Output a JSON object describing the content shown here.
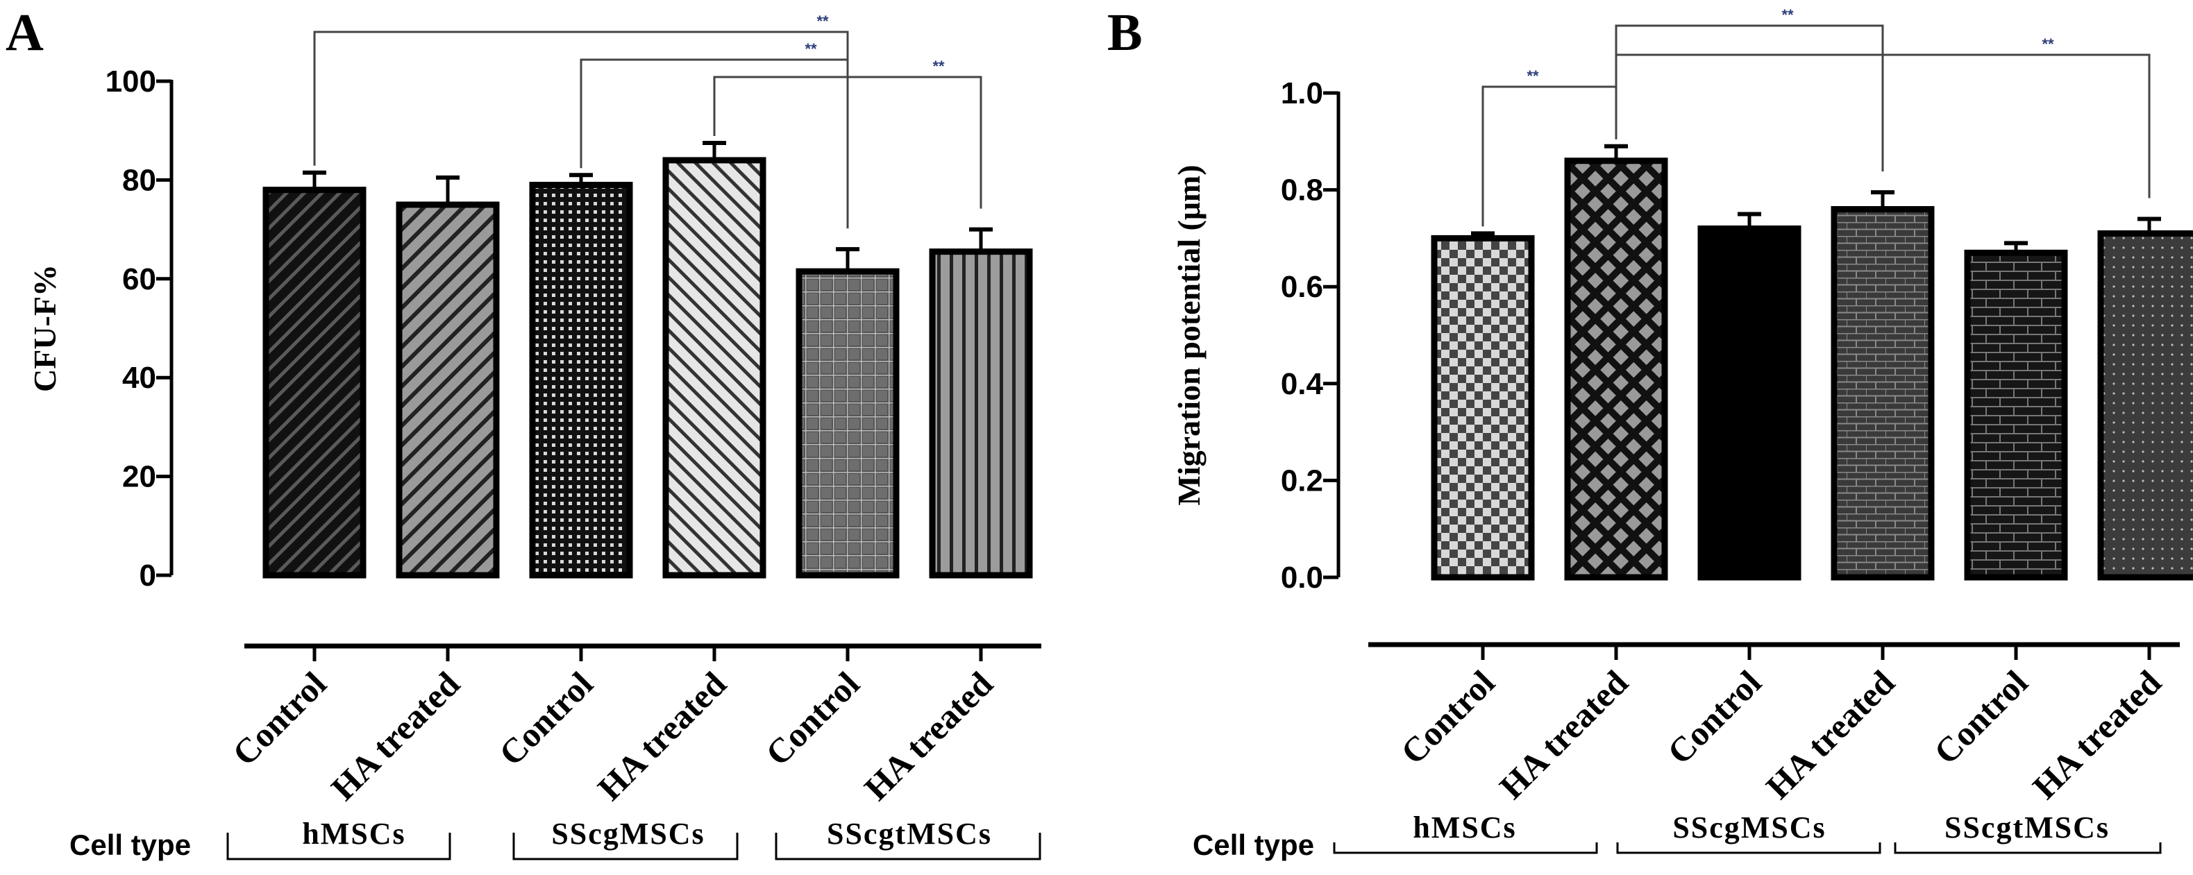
{
  "chart_data": [
    {
      "type": "bar",
      "panel_label": "A",
      "ylabel": "CFU-F%",
      "ylim": [
        0,
        100
      ],
      "yticks": [
        "0",
        "20",
        "40",
        "60",
        "80",
        "100"
      ],
      "categories": [
        "Control",
        "HA treated",
        "Control",
        "HA treated",
        "Control",
        "HA treated"
      ],
      "values": [
        78,
        75,
        79,
        84,
        61.5,
        65.5
      ],
      "errors": [
        3.5,
        5.5,
        2,
        3.5,
        4.5,
        4.5
      ],
      "patterns": [
        "diag-right-dark",
        "diag-right-gray",
        "dots-dense",
        "diag-left-light",
        "grid",
        "vertical-lines"
      ],
      "cell_type_label": "Cell type",
      "groups": [
        "hMSCs",
        "SScgMSCs",
        "SScgtMSCs"
      ],
      "significance": [
        {
          "from": 0,
          "to": 4,
          "label": "**"
        },
        {
          "from": 2,
          "to": 4,
          "label": "**"
        },
        {
          "from": 3,
          "to": 5,
          "label": "**"
        }
      ]
    },
    {
      "type": "bar",
      "panel_label": "B",
      "ylabel": "Migration potential (μm)",
      "ylim": [
        0,
        1.0
      ],
      "yticks": [
        "0.0",
        "0.2",
        "0.4",
        "0.6",
        "0.8",
        "1.0"
      ],
      "categories": [
        "Control",
        "HA treated",
        "Control",
        "HA treated",
        "Control",
        "HA treated"
      ],
      "values": [
        0.7,
        0.86,
        0.72,
        0.76,
        0.67,
        0.71
      ],
      "errors": [
        0.01,
        0.03,
        0.03,
        0.035,
        0.02,
        0.03
      ],
      "patterns": [
        "checker",
        "diamond",
        "solid",
        "brick-fine",
        "brick",
        "dots-sparse"
      ],
      "cell_type_label": "Cell type",
      "groups": [
        "hMSCs",
        "SScgMSCs",
        "SScgtMSCs"
      ],
      "significance": [
        {
          "from": 0,
          "to": 1,
          "label": "**"
        },
        {
          "from": 1,
          "to": 3,
          "label": "**"
        },
        {
          "from": 1,
          "to": 5,
          "label": "**"
        }
      ]
    }
  ]
}
